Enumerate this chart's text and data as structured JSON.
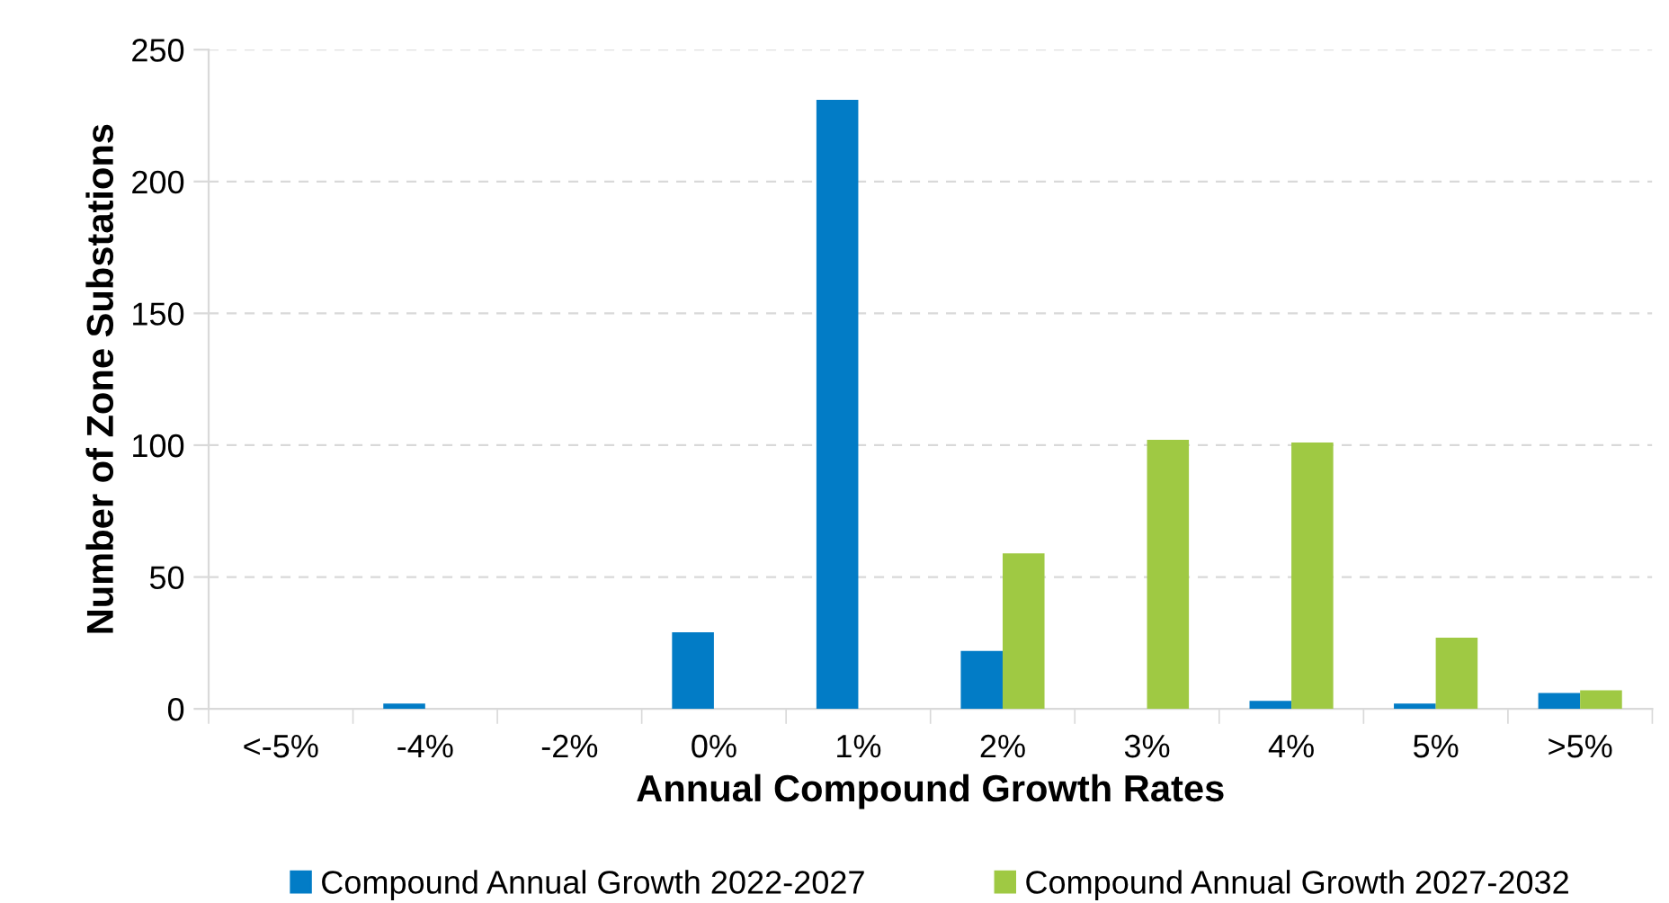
{
  "chart_data": {
    "type": "bar",
    "xlabel": "Annual Compound Growth Rates",
    "ylabel": "Number of Zone Substations",
    "categories": [
      "<-5%",
      "-4%",
      "-2%",
      "0%",
      "1%",
      "2%",
      "3%",
      "4%",
      "5%",
      ">5%"
    ],
    "series": [
      {
        "name": "Compound Annual Growth 2022-2027",
        "color": "#027cc6",
        "values": [
          0,
          2,
          0,
          29,
          231,
          22,
          0,
          3,
          2,
          6
        ]
      },
      {
        "name": "Compound Annual Growth 2027-2032",
        "color": "#9fc943",
        "values": [
          0,
          0,
          0,
          0,
          0,
          59,
          102,
          101,
          27,
          7
        ]
      }
    ],
    "ylim": [
      0,
      250
    ],
    "yticks": [
      0,
      50,
      100,
      150,
      200,
      250
    ],
    "grid": "y",
    "legend": "bottom"
  }
}
